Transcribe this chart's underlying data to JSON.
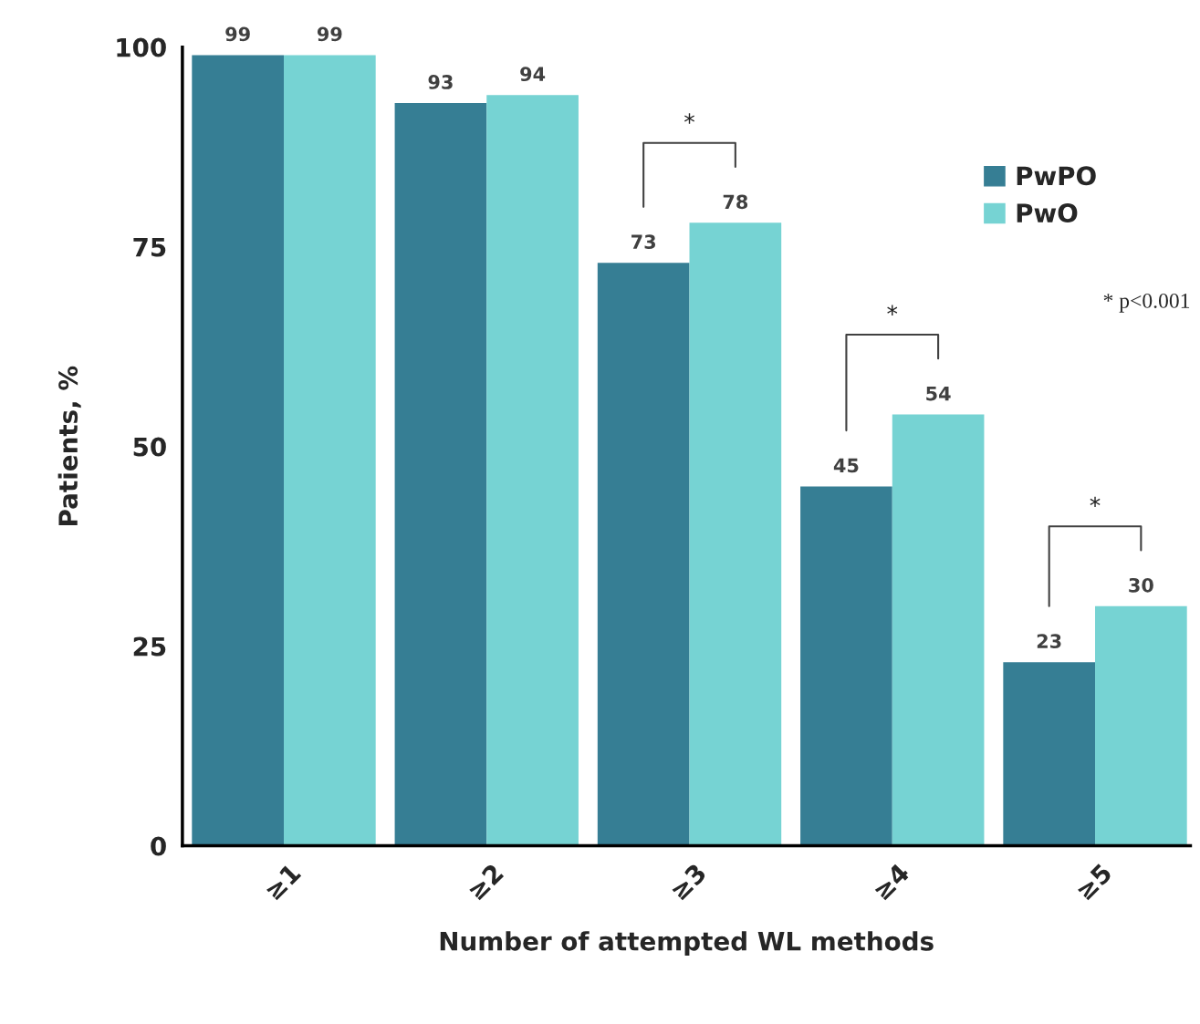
{
  "chart_data": {
    "type": "bar",
    "xlabel": "Number of attempted WL methods",
    "ylabel": "Patients, %",
    "categories": [
      "≥1",
      "≥2",
      "≥3",
      "≥4",
      "≥5"
    ],
    "series": [
      {
        "name": "PwPO",
        "color": "#367e94",
        "values": [
          99,
          93,
          73,
          45,
          23
        ]
      },
      {
        "name": "PwO",
        "color": "#76d3d3",
        "values": [
          99,
          94,
          78,
          54,
          30
        ]
      }
    ],
    "ylim": [
      0,
      100
    ],
    "yticks": [
      0,
      25,
      50,
      75,
      100
    ],
    "data_labels": true,
    "legend": "top right",
    "grid": false,
    "annotations": [
      "*",
      "*",
      "*",
      "* p<0.001"
    ]
  }
}
